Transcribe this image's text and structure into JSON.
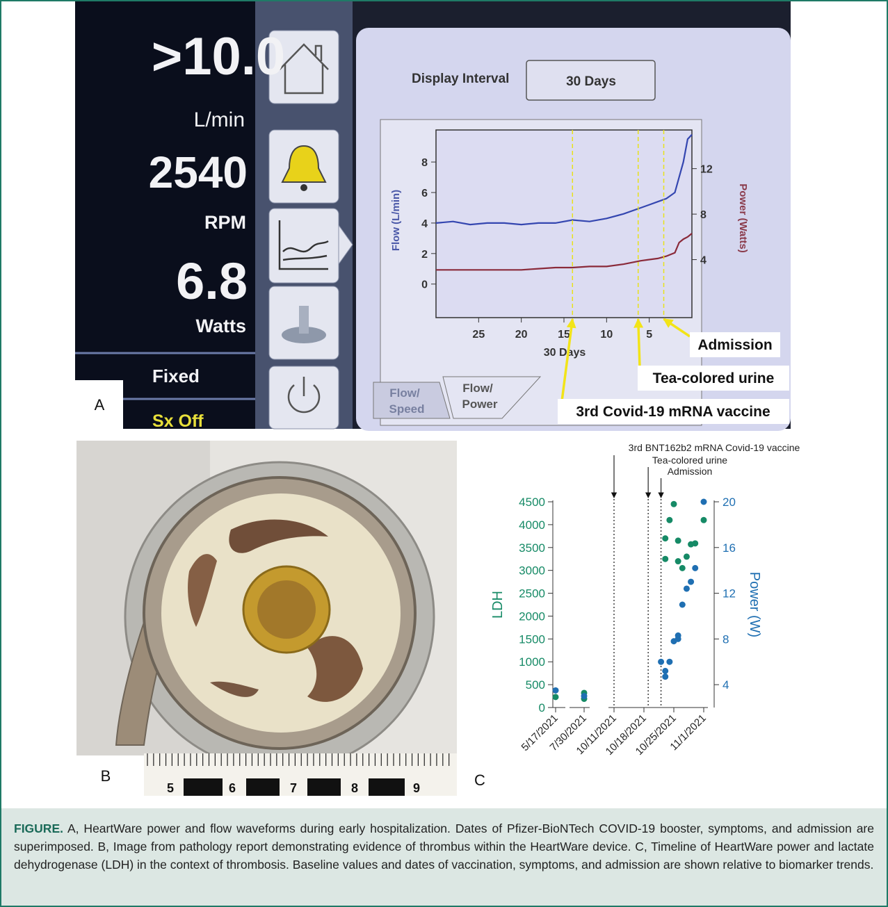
{
  "panel_a": {
    "label": "A",
    "readouts": [
      {
        "value": ">10.0",
        "unit": "L/min"
      },
      {
        "value": 2540,
        "unit": "RPM"
      },
      {
        "value": 6.8,
        "unit": "Watts"
      }
    ],
    "mode": "Fixed",
    "status": "Sx Off",
    "display_interval_label": "Display Interval",
    "display_interval": "30 Days",
    "tabs": [
      [
        "Flow/",
        "Speed"
      ],
      [
        "Flow/",
        "Power"
      ]
    ]
  },
  "panel_b": {
    "label": "B",
    "ruler_labels": [
      "5",
      "6",
      "7",
      "8",
      "9"
    ]
  },
  "panel_c": {
    "label": "C"
  },
  "chart_data": [
    {
      "type": "line",
      "xlabel": "30 Days",
      "ylabel": "Flow (L/min)",
      "y2label": "Power (Watts)",
      "x": [
        30,
        28,
        26,
        24,
        22,
        20,
        18,
        16,
        14,
        12,
        10,
        8,
        6,
        5,
        4,
        3,
        2,
        1.5,
        1,
        0.5,
        0
      ],
      "xlim": [
        30,
        0
      ],
      "xticks": [
        25,
        20,
        15,
        10,
        5
      ],
      "ylim": [
        -2.2,
        10.1
      ],
      "yticks": [
        0,
        2,
        4,
        6,
        8
      ],
      "y2lim": [
        -1.1,
        15.4
      ],
      "y2ticks": [
        4,
        8,
        12
      ],
      "series": [
        {
          "color": "#3446b0",
          "values": [
            4,
            4.1,
            3.9,
            4,
            4,
            3.9,
            4,
            4,
            4.2,
            4.1,
            4.3,
            4.6,
            5,
            5.2,
            5.4,
            5.6,
            6,
            7,
            8,
            9.5,
            9.8
          ]
        },
        {
          "color": "#8a2a3a",
          "axis": "y2",
          "values": [
            3.1,
            3.1,
            3.1,
            3.1,
            3.1,
            3.1,
            3.2,
            3.3,
            3.3,
            3.4,
            3.4,
            3.6,
            3.9,
            4,
            4.1,
            4.3,
            4.6,
            5.5,
            5.8,
            6,
            6.3
          ]
        }
      ],
      "annotations": [
        {
          "text": "Admission",
          "x": 3.3
        },
        {
          "text": "Tea-colored urine",
          "x": 6.3
        },
        {
          "text": "3rd Covid-19 mRNA vaccine",
          "x": 14
        }
      ]
    },
    {
      "type": "scatter",
      "ylabel": "LDH",
      "y2label": "Power (W)",
      "xticks": [
        "5/17/2021",
        "7/30/2021",
        "10/11/2021",
        "10/18/2021",
        "10/25/2021",
        "11/1/2021"
      ],
      "ylim": [
        0,
        4500
      ],
      "yticks": [
        0,
        500,
        1000,
        1500,
        2000,
        2500,
        3000,
        3500,
        4000,
        4500
      ],
      "y2lim": [
        2,
        20
      ],
      "y2ticks": [
        4,
        8,
        12,
        16,
        20
      ],
      "series": [
        {
          "color": "#168a66",
          "x": [
            "5/17/2021",
            "7/30/2021",
            "7/30/2021",
            "10/23/2021",
            "10/23/2021",
            "10/24/2021",
            "10/25/2021",
            "10/26/2021",
            "10/26/2021",
            "10/27/2021",
            "10/28/2021",
            "10/29/2021",
            "10/30/2021",
            "11/1/2021"
          ],
          "values": [
            230,
            320,
            190,
            3700,
            3250,
            4100,
            4450,
            3650,
            3200,
            3050,
            3300,
            3570,
            3590,
            4100
          ]
        },
        {
          "color": "#1f6fb2",
          "axis": "y2",
          "x": [
            "5/17/2021",
            "7/30/2021",
            "10/22/2021",
            "10/23/2021",
            "10/23/2021",
            "10/24/2021",
            "10/25/2021",
            "10/26/2021",
            "10/26/2021",
            "10/27/2021",
            "10/28/2021",
            "10/29/2021",
            "10/30/2021",
            "11/1/2021"
          ],
          "values": [
            3.5,
            3.0,
            6.0,
            5.2,
            4.7,
            6.0,
            7.8,
            8.3,
            8.0,
            11.0,
            12.4,
            13.0,
            14.2,
            20.0
          ]
        }
      ],
      "annotations": [
        {
          "text": "3rd BNT162b2 mRNA Covid-19 vaccine",
          "x": "10/11/2021"
        },
        {
          "text": "Tea-colored urine",
          "x": "10/19/2021"
        },
        {
          "text": "Admission",
          "x": "10/22/2021"
        }
      ]
    }
  ],
  "caption": {
    "label": "FIGURE.",
    "text": " A, HeartWare power and flow waveforms during early hospitalization. Dates of Pfizer-BioNTech COVID-19 booster, symptoms, and admission are superimposed. B, Image from pathology report demonstrating evidence of thrombus within the HeartWare device. C, Timeline of HeartWare power and lactate dehydrogenase (LDH) in the context of thrombosis. Baseline values and dates of vaccination, symptoms, and admission are shown relative to biomarker trends."
  }
}
